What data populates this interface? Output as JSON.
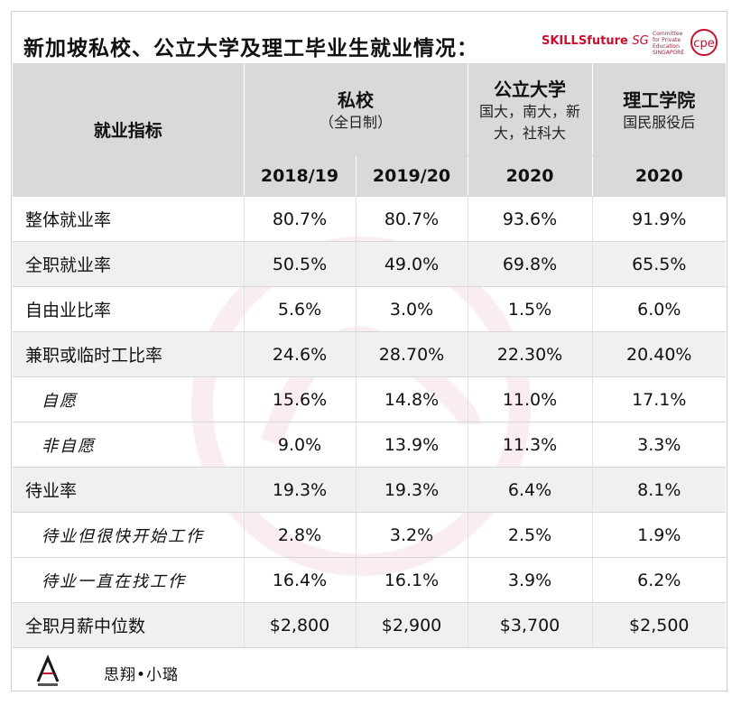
{
  "title": "新加坡私校、公立大学及理工毕业生就业情况：",
  "logos": {
    "skillsfuture": "SKILLSfuture",
    "skillsfuture_sg": "SG",
    "cpe_text": "Committee for Private Education SINGAPORE",
    "cpe_mark": "cpe"
  },
  "header": {
    "indicator_label": "就业指标",
    "groups": [
      {
        "name": "私校",
        "sub": "（全日制）"
      },
      {
        "name": "公立大学",
        "sub": "国大，南大，新大，社科大"
      },
      {
        "name": "理工学院",
        "sub": "国民服役后"
      }
    ],
    "years": [
      "2018/19",
      "2019/20",
      "2020",
      "2020"
    ]
  },
  "rows": [
    {
      "label": "整体就业率",
      "values": [
        "80.7%",
        "80.7%",
        "93.6%",
        "91.9%"
      ]
    },
    {
      "label": "全职就业率",
      "values": [
        "50.5%",
        "49.0%",
        "69.8%",
        "65.5%"
      ]
    },
    {
      "label": "自由业比率",
      "values": [
        "5.6%",
        "3.0%",
        "1.5%",
        "6.0%"
      ]
    },
    {
      "label": "兼职或临时工比率",
      "values": [
        "24.6%",
        "28.70%",
        "22.30%",
        "20.40%"
      ]
    },
    {
      "label": "自愿",
      "values": [
        "15.6%",
        "14.8%",
        "11.0%",
        "17.1%"
      ]
    },
    {
      "label": "非自愿",
      "values": [
        "9.0%",
        "13.9%",
        "11.3%",
        "3.3%"
      ]
    },
    {
      "label": "待业率",
      "values": [
        "19.3%",
        "19.3%",
        "6.4%",
        "8.1%"
      ]
    },
    {
      "label": "待业但很快开始工作",
      "values": [
        "2.8%",
        "3.2%",
        "2.5%",
        "1.9%"
      ]
    },
    {
      "label": "待业一直在找工作",
      "values": [
        "16.4%",
        "16.1%",
        "3.9%",
        "6.2%"
      ]
    },
    {
      "label": "全职月薪中位数",
      "values": [
        "$2,800",
        "$2,900",
        "$3,700",
        "$2,500"
      ]
    }
  ],
  "footer": {
    "author": "思翔•小璐"
  }
}
